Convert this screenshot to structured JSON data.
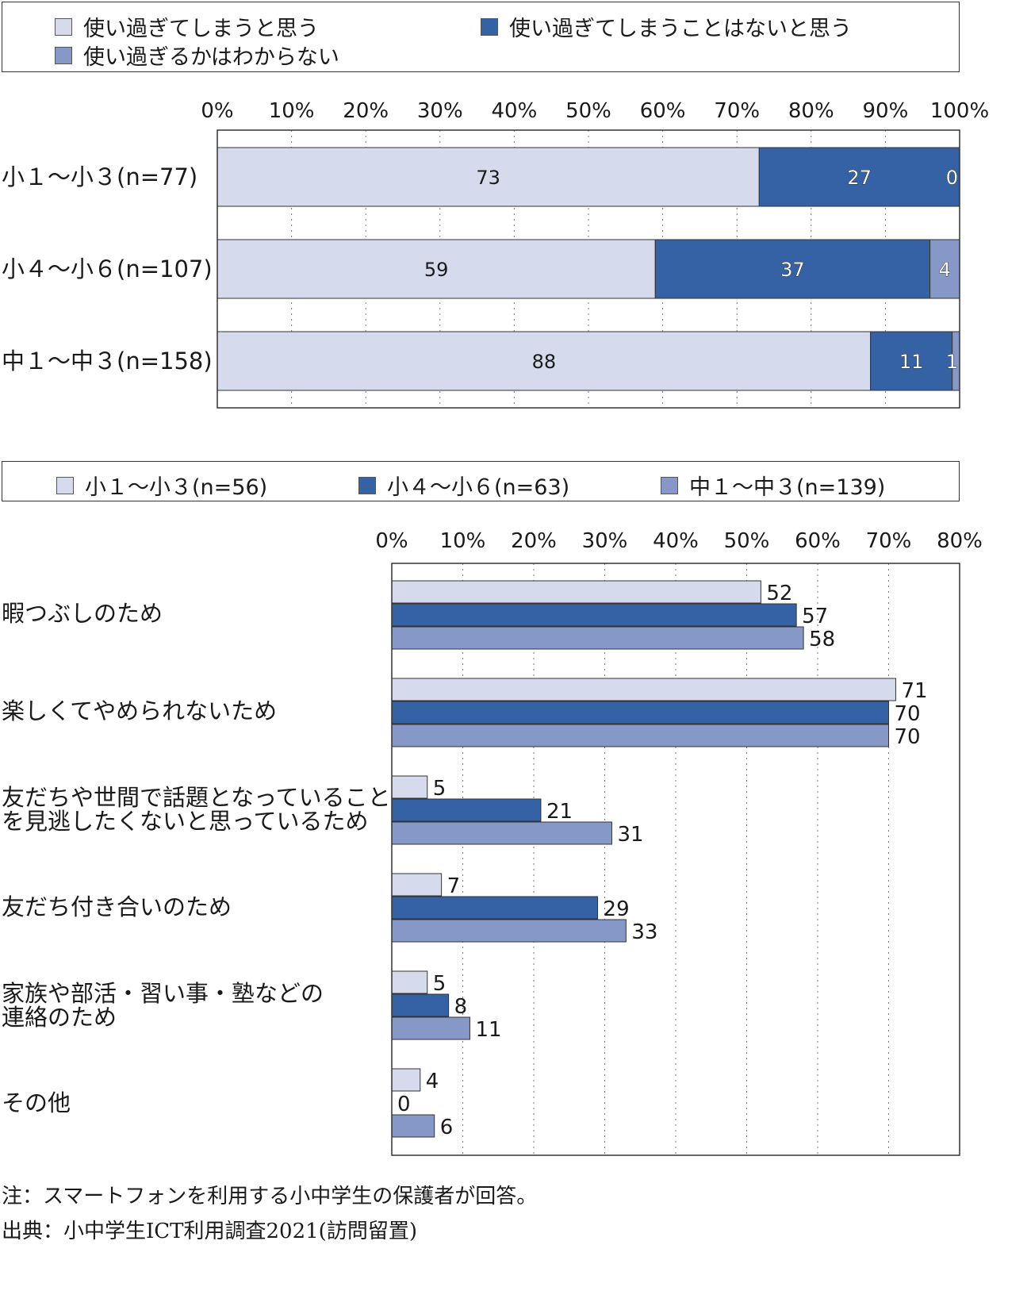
{
  "chart_data": [
    {
      "type": "bar",
      "orientation": "horizontal",
      "stacked": true,
      "legend": "top",
      "grid": true,
      "xlim": [
        0,
        100
      ],
      "ticks": [
        "0%",
        "10%",
        "20%",
        "30%",
        "40%",
        "50%",
        "60%",
        "70%",
        "80%",
        "90%",
        "100%"
      ],
      "categories": [
        "小１～小３(n=77)",
        "小４～小６(n=107)",
        "中１～中３(n=158)"
      ],
      "series": [
        {
          "name": "使い過ぎてしまうと思う",
          "values": [
            73,
            59,
            88
          ]
        },
        {
          "name": "使い過ぎてしまうことはないと思う",
          "values": [
            27,
            37,
            11
          ]
        },
        {
          "name": "使い過ぎるかはわからない",
          "values": [
            0,
            4,
            1
          ]
        }
      ]
    },
    {
      "type": "bar",
      "orientation": "horizontal",
      "stacked": false,
      "legend": "top",
      "grid": true,
      "xlim": [
        0,
        80
      ],
      "ticks": [
        "0%",
        "10%",
        "20%",
        "30%",
        "40%",
        "50%",
        "60%",
        "70%",
        "80%"
      ],
      "categories": [
        [
          "暇つぶしのため"
        ],
        [
          "楽しくてやめられないため"
        ],
        [
          "友だちや世間で話題となっていること",
          "を見逃したくないと思っているため"
        ],
        [
          "友だち付き合いのため"
        ],
        [
          "家族や部活・習い事・塾などの",
          "連絡のため"
        ],
        [
          "その他"
        ]
      ],
      "series": [
        {
          "name": "小１～小３(n=56)",
          "values": [
            52,
            71,
            5,
            7,
            5,
            4
          ]
        },
        {
          "name": "小４～小６(n=63)",
          "values": [
            57,
            70,
            21,
            29,
            8,
            0
          ]
        },
        {
          "name": "中１～中３(n=139)",
          "values": [
            58,
            70,
            31,
            33,
            11,
            6
          ]
        }
      ]
    }
  ],
  "colors": {
    "light": "#d5dbec",
    "dark": "#3562a5",
    "mid": "#8698c8",
    "border": "#333333",
    "grid": "#777777"
  },
  "notes": {
    "note": "注：スマートフォンを利用する小中学生の保護者が回答。",
    "source": "出典：小中学生ICT利用調査2021(訪問留置)"
  }
}
